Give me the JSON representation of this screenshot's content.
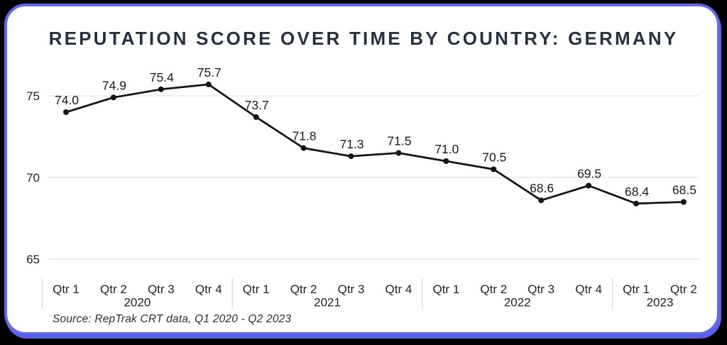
{
  "title": "REPUTATION SCORE OVER TIME BY COUNTRY: GERMANY",
  "source": "Source: RepTrak CRT data, Q1 2020 - Q2 2023",
  "colors": {
    "page_background": "#000000",
    "card_background": "#ffffff",
    "card_border": "#6365ea",
    "title_text": "#243140",
    "line": "#141414",
    "marker": "#141414",
    "gridline": "#e4e4e4",
    "separator": "#d9d9d9",
    "data_label_text": "#1a1a1a",
    "axis_text": "#222222"
  },
  "chart_data": {
    "type": "line",
    "title": "REPUTATION SCORE OVER TIME BY COUNTRY: GERMANY",
    "categories": [
      "Qtr 1",
      "Qtr 2",
      "Qtr 3",
      "Qtr 4",
      "Qtr 1",
      "Qtr 2",
      "Qtr 3",
      "Qtr 4",
      "Qtr 1",
      "Qtr 2",
      "Qtr 3",
      "Qtr 4",
      "Qtr 1",
      "Qtr 2"
    ],
    "year_groups": [
      {
        "year": "2020",
        "quarters": 4
      },
      {
        "year": "2021",
        "quarters": 4
      },
      {
        "year": "2022",
        "quarters": 4
      },
      {
        "year": "2023",
        "quarters": 2
      }
    ],
    "series": [
      {
        "name": "Germany",
        "values": [
          74.0,
          74.9,
          75.4,
          75.7,
          73.7,
          71.8,
          71.3,
          71.5,
          71.0,
          70.5,
          68.6,
          69.5,
          68.4,
          68.5
        ]
      }
    ],
    "yticks": [
      75,
      70,
      65
    ],
    "ylim": [
      63.5,
      76.8
    ],
    "grid": "horizontal",
    "data_labels": true,
    "legend": "none"
  }
}
